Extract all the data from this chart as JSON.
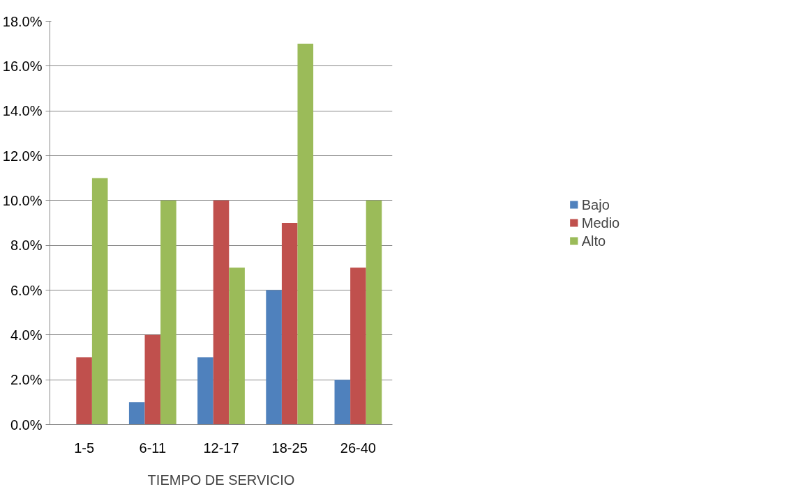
{
  "chart_data": {
    "type": "bar",
    "xlabel": "TIEMPO DE SERVICIO",
    "categories": [
      "1-5",
      "6-11",
      "12-17",
      "18-25",
      "26-40"
    ],
    "series": [
      {
        "name": "Bajo",
        "color": "#4f81bd",
        "values": [
          0,
          1,
          3,
          6,
          2
        ]
      },
      {
        "name": "Medio",
        "color": "#c0504d",
        "values": [
          3,
          4,
          10,
          9,
          7
        ]
      },
      {
        "name": "Alto",
        "color": "#9bbb59",
        "values": [
          11,
          10,
          7,
          17,
          10
        ]
      }
    ],
    "ylim": [
      0,
      18
    ],
    "yticks": [
      {
        "value": 0,
        "label": "0.0%"
      },
      {
        "value": 2,
        "label": "2.0%"
      },
      {
        "value": 4,
        "label": "4.0%"
      },
      {
        "value": 6,
        "label": "6.0%"
      },
      {
        "value": 8,
        "label": "8.0%"
      },
      {
        "value": 10,
        "label": "10.0%"
      },
      {
        "value": 12,
        "label": "12.0%"
      },
      {
        "value": 14,
        "label": "14.0%"
      },
      {
        "value": 16,
        "label": "16.0%"
      },
      {
        "value": 18,
        "label": "18.0%"
      }
    ],
    "grid": "y",
    "legend": "right"
  }
}
